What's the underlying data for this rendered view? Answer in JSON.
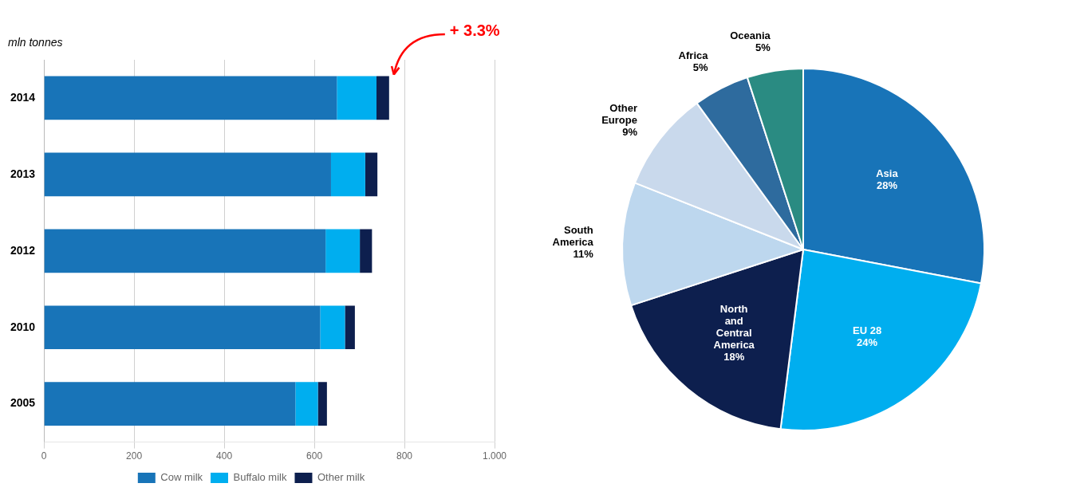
{
  "chart_data": [
    {
      "type": "bar",
      "orientation": "horizontal",
      "stacked": true,
      "ylabel": "mln tonnes",
      "annotations": [
        {
          "text": "+ 3.3%",
          "color": "red"
        }
      ],
      "categories": [
        "2014",
        "2013",
        "2012",
        "2010",
        "2005"
      ],
      "series": [
        {
          "name": "Cow milk",
          "color": "#1874B8",
          "values": [
            650,
            637,
            625,
            613,
            558
          ]
        },
        {
          "name": "Buffalo milk",
          "color": "#00AEEF",
          "values": [
            88,
            76,
            76,
            55,
            50
          ]
        },
        {
          "name": "Other milk",
          "color": "#0D1F4E",
          "values": [
            28,
            27,
            27,
            22,
            20
          ]
        }
      ],
      "xlim": [
        0,
        1000
      ],
      "xticks": [
        0,
        200,
        400,
        600,
        800,
        {
          "value": 1000,
          "label": "1.000"
        }
      ],
      "grid": true,
      "legend": "bottom"
    },
    {
      "type": "pie",
      "categories": [
        "Asia",
        "EU 28",
        "North\nand\nCentral\nAmerica",
        "South\nAmerica",
        "Other\nEurope",
        "Africa",
        "Oceania"
      ],
      "values": [
        28,
        24,
        18,
        11,
        9,
        5,
        5
      ],
      "value_labels": [
        "28%",
        "24%",
        "18%",
        "11%",
        "9%",
        "5%",
        "5%"
      ],
      "colors": [
        "#1874B8",
        "#00AEEF",
        "#0D1F4E",
        "#BDD7EE",
        "#C9D9EC",
        "#2E6B9E",
        "#2A8B82"
      ],
      "data_labels": true
    }
  ]
}
